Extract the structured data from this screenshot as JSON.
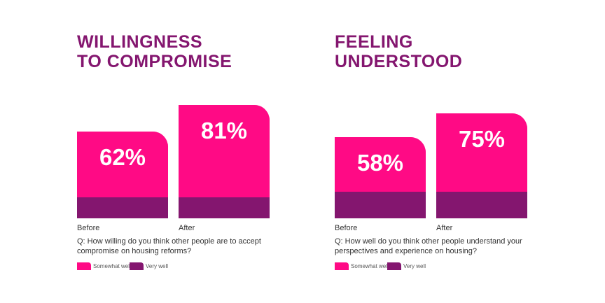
{
  "colors": {
    "somewhat_well": "#FF0A85",
    "very_well": "#84166F",
    "title": "#84166F"
  },
  "chart_data": [
    {
      "type": "bar",
      "stacked": true,
      "title_lines": [
        "WILLINGNESS",
        "TO COMPROMISE"
      ],
      "categories": [
        "Before",
        "After"
      ],
      "series": [
        {
          "name": "Somewhat well",
          "values": [
            47,
            66
          ]
        },
        {
          "name": "Very well",
          "values": [
            15,
            15
          ]
        }
      ],
      "totals": [
        62,
        81
      ],
      "value_labels": [
        "62%",
        "81%"
      ],
      "question": "Q: How willing do you think other people are to accept compromise on housing reforms?",
      "legend": [
        "Somewhat well",
        "Very well"
      ],
      "legend_position": "bottom-left"
    },
    {
      "type": "bar",
      "stacked": true,
      "title_lines": [
        "FEELING",
        "UNDERSTOOD"
      ],
      "categories": [
        "Before",
        "After"
      ],
      "series": [
        {
          "name": "Somewhat well",
          "values": [
            39,
            56
          ]
        },
        {
          "name": "Very well",
          "values": [
            19,
            19
          ]
        }
      ],
      "totals": [
        58,
        75
      ],
      "value_labels": [
        "58%",
        "75%"
      ],
      "question": "Q: How well do you think other people understand your perspectives and experience on housing?",
      "legend": [
        "Somewhat well",
        "Very well"
      ],
      "legend_position": "bottom-left"
    }
  ]
}
